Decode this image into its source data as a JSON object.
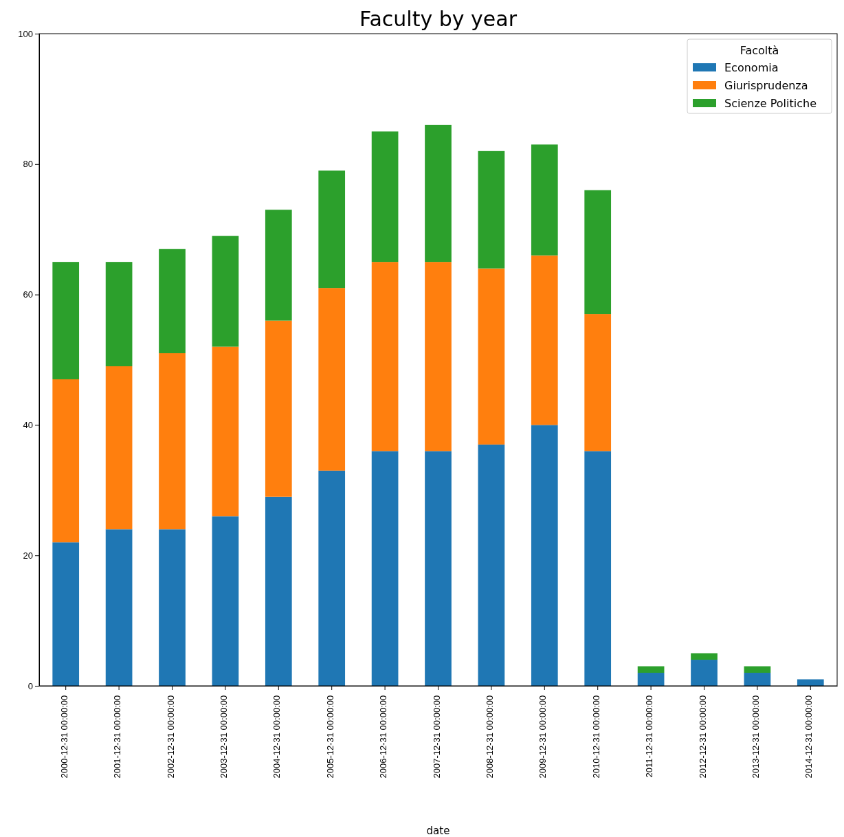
{
  "chart_data": {
    "type": "bar",
    "title": "Faculty by year",
    "xlabel": "date",
    "legend_title": "Facoltà",
    "legend": "top right",
    "stacked": true,
    "grid": false,
    "categories": [
      "2000-12-31 00:00:00",
      "2001-12-31 00:00:00",
      "2002-12-31 00:00:00",
      "2003-12-31 00:00:00",
      "2004-12-31 00:00:00",
      "2005-12-31 00:00:00",
      "2006-12-31 00:00:00",
      "2007-12-31 00:00:00",
      "2008-12-31 00:00:00",
      "2009-12-31 00:00:00",
      "2010-12-31 00:00:00",
      "2011-12-31 00:00:00",
      "2012-12-31 00:00:00",
      "2013-12-31 00:00:00",
      "2014-12-31 00:00:00"
    ],
    "series": [
      {
        "name": "Economia",
        "color": "#1f77b4",
        "values": [
          22,
          24,
          24,
          26,
          29,
          33,
          36,
          36,
          37,
          40,
          36,
          2,
          4,
          2,
          1
        ]
      },
      {
        "name": "Giurisprudenza",
        "color": "#ff7f0e",
        "values": [
          25,
          25,
          27,
          26,
          27,
          28,
          29,
          29,
          27,
          26,
          21,
          0,
          0,
          0,
          0
        ]
      },
      {
        "name": "Scienze Politiche",
        "color": "#2ca02c",
        "values": [
          18,
          16,
          16,
          17,
          17,
          18,
          20,
          21,
          18,
          17,
          19,
          1,
          1,
          1,
          0
        ]
      }
    ],
    "ylim": [
      0,
      100
    ],
    "yticks": [
      0,
      20,
      40,
      60,
      80,
      100
    ]
  }
}
